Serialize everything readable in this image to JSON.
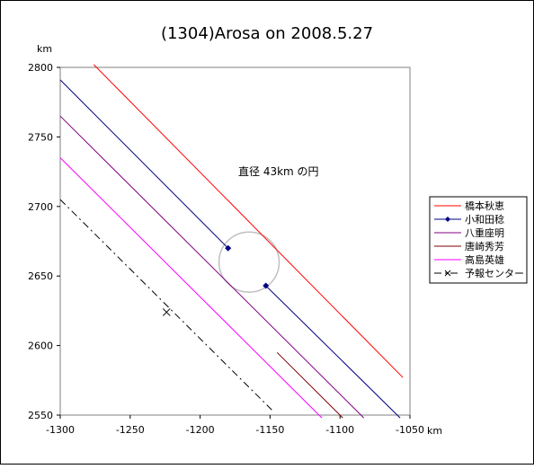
{
  "chart_data": {
    "type": "line",
    "title": "(1304)Arosa on 2008.5.27",
    "xlabel": "km",
    "ylabel": "km",
    "xlim": [
      -1300,
      -1050
    ],
    "ylim": [
      2550,
      2800
    ],
    "x_ticks": [
      -1300,
      -1250,
      -1200,
      -1150,
      -1100,
      -1050
    ],
    "y_ticks": [
      2550,
      2600,
      2650,
      2700,
      2750,
      2800
    ],
    "legend_position": "right",
    "annotation": "直径 43km の円",
    "circle": {
      "center": [
        -1165,
        2660
      ],
      "diameter": 43,
      "color": "#c0c0c0"
    },
    "series": [
      {
        "name": "橋本秋恵",
        "color": "#ff0000",
        "style": "solid",
        "segments": [
          [
            [
              -1276,
              2802
            ],
            [
              -1055,
              2577
            ]
          ]
        ]
      },
      {
        "name": "小和田稔",
        "color": "#000080",
        "style": "solid",
        "segments": [
          [
            [
              -1300,
              2791
            ],
            [
              -1180,
              2670
            ]
          ],
          [
            [
              -1153,
              2643
            ],
            [
              -1057,
              2548
            ]
          ]
        ],
        "points": [
          [
            -1180,
            2670
          ],
          [
            -1153,
            2643
          ]
        ]
      },
      {
        "name": "八重座明",
        "color": "#800080",
        "style": "solid",
        "segments": [
          [
            [
              -1300,
              2765
            ],
            [
              -1083,
              2548
            ]
          ]
        ]
      },
      {
        "name": "唐崎秀芳",
        "color": "#800000",
        "style": "solid",
        "segments": [
          [
            [
              -1145,
              2595
            ],
            [
              -1098,
              2548
            ]
          ]
        ]
      },
      {
        "name": "高島英雄",
        "color": "#ff00ff",
        "style": "solid",
        "segments": [
          [
            [
              -1300,
              2735
            ],
            [
              -1113,
              2548
            ]
          ]
        ]
      },
      {
        "name": "予報センター",
        "color": "#000000",
        "style": "dashdot",
        "marker": "x",
        "segments": [
          [
            [
              -1300,
              2705
            ],
            [
              -1148,
              2553
            ]
          ]
        ],
        "points": [
          [
            -1224,
            2624
          ]
        ]
      }
    ]
  }
}
